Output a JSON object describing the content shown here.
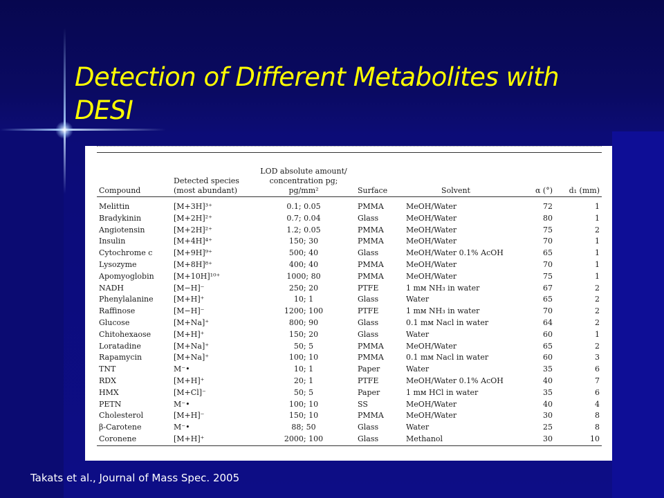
{
  "slide": {
    "title": "Detection of Different Metabolites with DESI",
    "citation": "Takats et al., Journal of Mass Spec. 2005"
  },
  "colors": {
    "background": "#0c0c78",
    "title": "#ffff00",
    "citation": "#ffffff",
    "panel": "#ffffff"
  },
  "table": {
    "headers": {
      "compound": "Compound",
      "species": "Detected species (most abundant)",
      "lod": "LOD absolute amount/ concentration pg; pg/mm²",
      "surface": "Surface",
      "solvent": "Solvent",
      "alpha": "α (°)",
      "d1": "d₁ (mm)"
    },
    "rows": [
      {
        "compound": "Melittin",
        "species": "[M+3H]³⁺",
        "lod": "0.1; 0.05",
        "surface": "PMMA",
        "solvent": "MeOH/Water",
        "alpha": "72",
        "d1": "1"
      },
      {
        "compound": "Bradykinin",
        "species": "[M+2H]²⁺",
        "lod": "0.7; 0.04",
        "surface": "Glass",
        "solvent": "MeOH/Water",
        "alpha": "80",
        "d1": "1"
      },
      {
        "compound": "Angiotensin",
        "species": "[M+2H]²⁺",
        "lod": "1.2; 0.05",
        "surface": "PMMA",
        "solvent": "MeOH/Water",
        "alpha": "75",
        "d1": "2"
      },
      {
        "compound": "Insulin",
        "species": "[M+4H]⁴⁺",
        "lod": "150; 30",
        "surface": "PMMA",
        "solvent": "MeOH/Water",
        "alpha": "70",
        "d1": "1"
      },
      {
        "compound": "Cytochrome c",
        "species": "[M+9H]⁹⁺",
        "lod": "500; 40",
        "surface": "Glass",
        "solvent": "MeOH/Water 0.1% AcOH",
        "alpha": "65",
        "d1": "1"
      },
      {
        "compound": "Lysozyme",
        "species": "[M+8H]⁸⁺",
        "lod": "400; 40",
        "surface": "PMMA",
        "solvent": "MeOH/Water",
        "alpha": "70",
        "d1": "1"
      },
      {
        "compound": "Apomyoglobin",
        "species": "[M+10H]¹⁰⁺",
        "lod": "1000; 80",
        "surface": "PMMA",
        "solvent": "MeOH/Water",
        "alpha": "75",
        "d1": "1"
      },
      {
        "compound": "NADH",
        "species": "[M−H]⁻",
        "lod": "250; 20",
        "surface": "PTFE",
        "solvent": "1 mм NH₃ in water",
        "alpha": "67",
        "d1": "2"
      },
      {
        "compound": "Phenylalanine",
        "species": "[M+H]⁺",
        "lod": "10; 1",
        "surface": "Glass",
        "solvent": "Water",
        "alpha": "65",
        "d1": "2"
      },
      {
        "compound": "Raffinose",
        "species": "[M−H]⁻",
        "lod": "1200; 100",
        "surface": "PTFE",
        "solvent": "1 mм NH₃ in water",
        "alpha": "70",
        "d1": "2"
      },
      {
        "compound": "Glucose",
        "species": "[M+Na]⁺",
        "lod": "800; 90",
        "surface": "Glass",
        "solvent": "0.1 mм Nacl in water",
        "alpha": "64",
        "d1": "2"
      },
      {
        "compound": "Chitohexaose",
        "species": "[M+H]⁺",
        "lod": "150; 20",
        "surface": "Glass",
        "solvent": "Water",
        "alpha": "60",
        "d1": "1"
      },
      {
        "compound": "Loratadine",
        "species": "[M+Na]⁺",
        "lod": "50; 5",
        "surface": "PMMA",
        "solvent": "MeOH/Water",
        "alpha": "65",
        "d1": "2"
      },
      {
        "compound": "Rapamycin",
        "species": "[M+Na]⁺",
        "lod": "100; 10",
        "surface": "PMMA",
        "solvent": "0.1 mм Nacl in water",
        "alpha": "60",
        "d1": "3"
      },
      {
        "compound": "TNT",
        "species": "M⁻•",
        "lod": "10; 1",
        "surface": "Paper",
        "solvent": "Water",
        "alpha": "35",
        "d1": "6"
      },
      {
        "compound": "RDX",
        "species": "[M+H]⁺",
        "lod": "20; 1",
        "surface": "PTFE",
        "solvent": "MeOH/Water 0.1% AcOH",
        "alpha": "40",
        "d1": "7"
      },
      {
        "compound": "HMX",
        "species": "[M+Cl]⁻",
        "lod": "50; 5",
        "surface": "Paper",
        "solvent": "1 mм HCl in water",
        "alpha": "35",
        "d1": "6"
      },
      {
        "compound": "PETN",
        "species": "M⁻•",
        "lod": "100; 10",
        "surface": "SS",
        "solvent": "MeOH/Water",
        "alpha": "40",
        "d1": "4"
      },
      {
        "compound": "Cholesterol",
        "species": "[M+H]⁻",
        "lod": "150; 10",
        "surface": "PMMA",
        "solvent": "MeOH/Water",
        "alpha": "30",
        "d1": "8"
      },
      {
        "compound": "β-Carotene",
        "species": "M⁻•",
        "lod": "88; 50",
        "surface": "Glass",
        "solvent": "Water",
        "alpha": "25",
        "d1": "8"
      },
      {
        "compound": "Coronene",
        "species": "[M+H]⁺",
        "lod": "2000; 100",
        "surface": "Glass",
        "solvent": "Methanol",
        "alpha": "30",
        "d1": "10"
      }
    ]
  }
}
